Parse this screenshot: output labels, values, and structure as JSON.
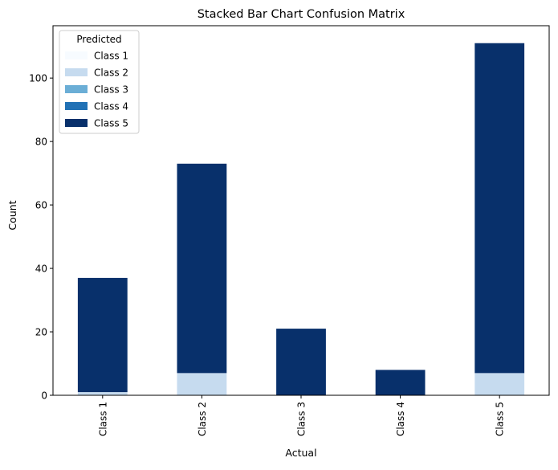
{
  "chart_data": {
    "type": "bar",
    "stacked": true,
    "title": "Stacked Bar Chart Confusion Matrix",
    "xlabel": "Actual",
    "ylabel": "Count",
    "categories": [
      "Class 1",
      "Class 2",
      "Class 3",
      "Class 4",
      "Class 5"
    ],
    "ylim": [
      0,
      116.5
    ],
    "yticks": [
      0,
      20,
      40,
      60,
      80,
      100
    ],
    "legend": {
      "title": "Predicted",
      "placement": "top-left"
    },
    "series": [
      {
        "name": "Class 1",
        "color": "#f7fbff",
        "values": [
          0,
          0,
          0,
          0,
          0
        ]
      },
      {
        "name": "Class 2",
        "color": "#c6dbef",
        "values": [
          1,
          7,
          0,
          0,
          7
        ]
      },
      {
        "name": "Class 3",
        "color": "#6baed6",
        "values": [
          0,
          0,
          0,
          0,
          0
        ]
      },
      {
        "name": "Class 4",
        "color": "#2171b5",
        "values": [
          0,
          0,
          0,
          0,
          0
        ]
      },
      {
        "name": "Class 5",
        "color": "#08306b",
        "values": [
          36,
          66,
          21,
          8,
          104
        ]
      }
    ]
  }
}
